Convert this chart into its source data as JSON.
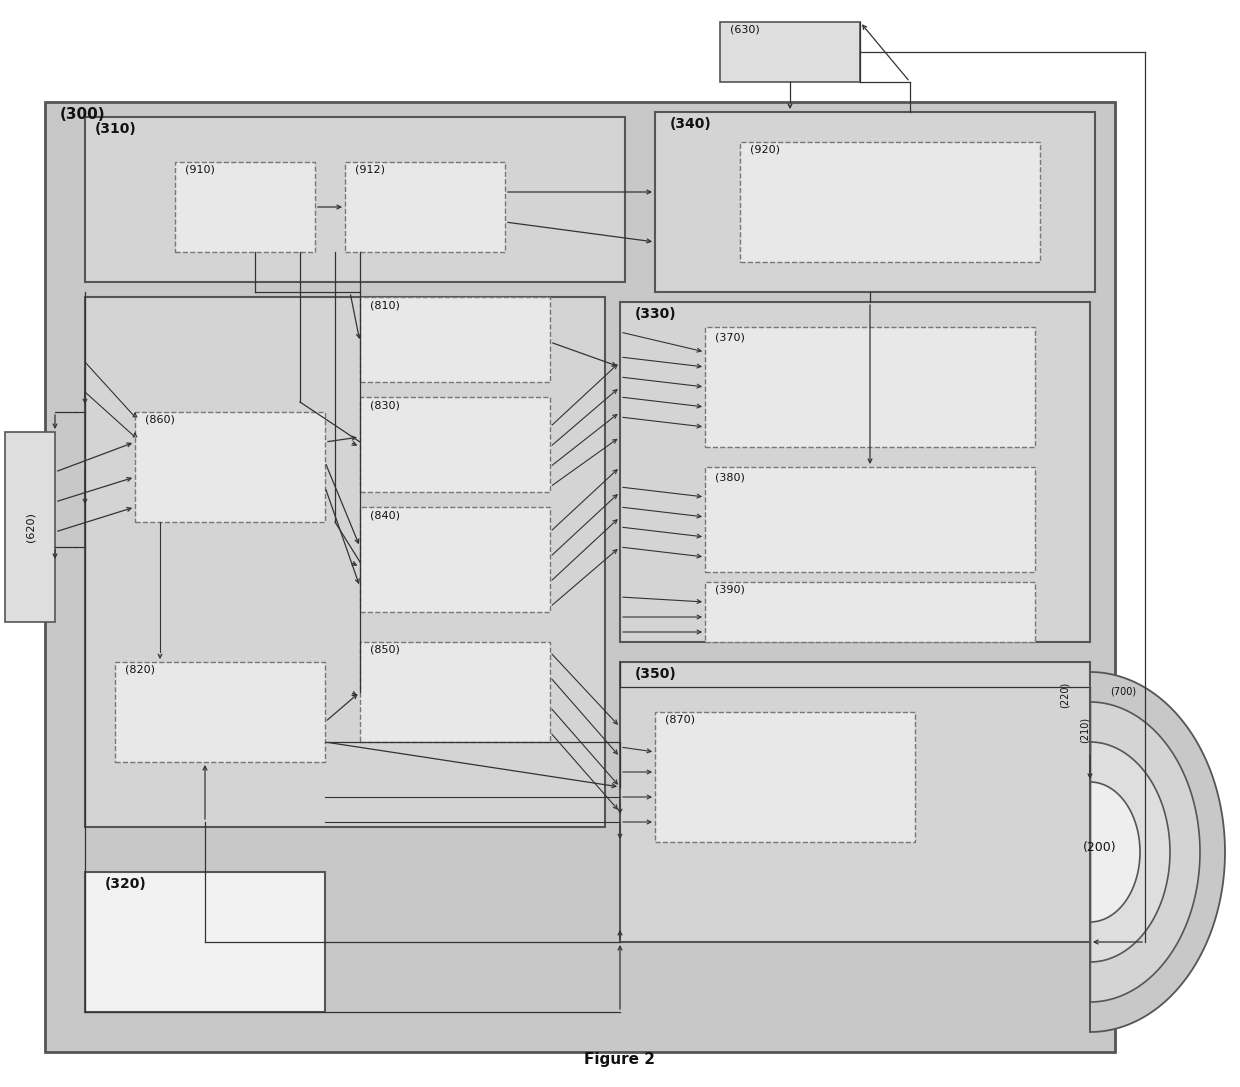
{
  "title": "Figure 2",
  "colors": {
    "bg_outer": "#c8c8c8",
    "bg_300": "#c8c8c8",
    "fill_region": "#d4d4d4",
    "fill_box_light": "#dedede",
    "fill_dashed": "#e8e8e8",
    "fill_white": "#f2f2f2",
    "edge": "#555555",
    "edge_light": "#777777",
    "arrow": "#333333",
    "text": "#111111"
  },
  "labels": {
    "300": "(300)",
    "310": "(310)",
    "320": "(320)",
    "330": "(330)",
    "340": "(340)",
    "350": "(350)",
    "370": "(370)",
    "380": "(380)",
    "390": "(390)",
    "200": "(200)",
    "210": "(210)",
    "220": "(220)",
    "620": "(620)",
    "630": "(630)",
    "700": "(700)",
    "810": "(810)",
    "820": "(820)",
    "830": "(830)",
    "840": "(840)",
    "850": "(850)",
    "860": "(860)",
    "870": "(870)",
    "910": "(910)",
    "912": "(912)",
    "920": "(920)"
  }
}
